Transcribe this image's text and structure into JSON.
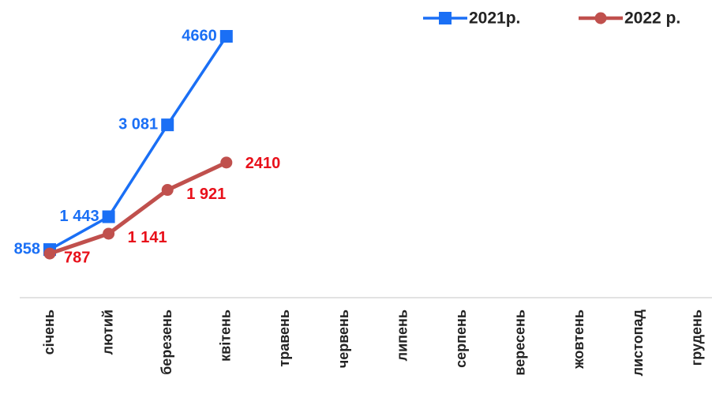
{
  "chart_data": {
    "type": "line",
    "categories": [
      "січень",
      "лютий",
      "березень",
      "квітень",
      "травень",
      "червень",
      "липень",
      "серпень",
      "вересень",
      "жовтень",
      "листопад",
      "грудень"
    ],
    "series": [
      {
        "name": "2021р.",
        "color": "#1a6ff5",
        "label_color": "#1a6ff5",
        "marker": "square",
        "values": [
          858,
          1443,
          3081,
          4660,
          null,
          null,
          null,
          null,
          null,
          null,
          null,
          null
        ],
        "value_labels": [
          "858",
          "1 443",
          "3 081",
          "4660",
          null,
          null,
          null,
          null,
          null,
          null,
          null,
          null
        ]
      },
      {
        "name": "2022 р.",
        "color": "#c0504d",
        "label_color": "#e8101a",
        "marker": "circle",
        "values": [
          787,
          1141,
          1921,
          2410,
          null,
          null,
          null,
          null,
          null,
          null,
          null,
          null
        ],
        "value_labels": [
          "787",
          "1 141",
          "1 921",
          "2410",
          null,
          null,
          null,
          null,
          null,
          null,
          null,
          null
        ]
      }
    ],
    "legend": "top-right"
  }
}
